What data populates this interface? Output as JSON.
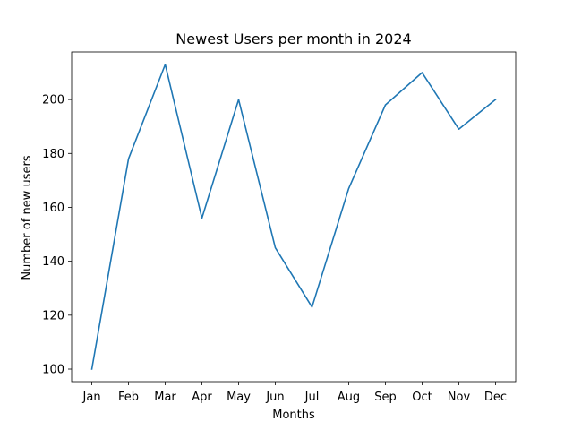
{
  "chart_data": {
    "type": "line",
    "title": "Newest Users per month in 2024",
    "xlabel": "Months",
    "ylabel": "Number of new users",
    "categories": [
      "Jan",
      "Feb",
      "Mar",
      "Apr",
      "May",
      "Jun",
      "Jul",
      "Aug",
      "Sep",
      "Oct",
      "Nov",
      "Dec"
    ],
    "series": [
      {
        "values": [
          100,
          178,
          213,
          156,
          200,
          145,
          123,
          167,
          198,
          210,
          189,
          200
        ],
        "color": "#1f77b4"
      }
    ],
    "ylim": [
      95.35,
      217.65
    ],
    "yticks": [
      100,
      120,
      140,
      160,
      180,
      200
    ],
    "grid": false,
    "legend": "none"
  }
}
